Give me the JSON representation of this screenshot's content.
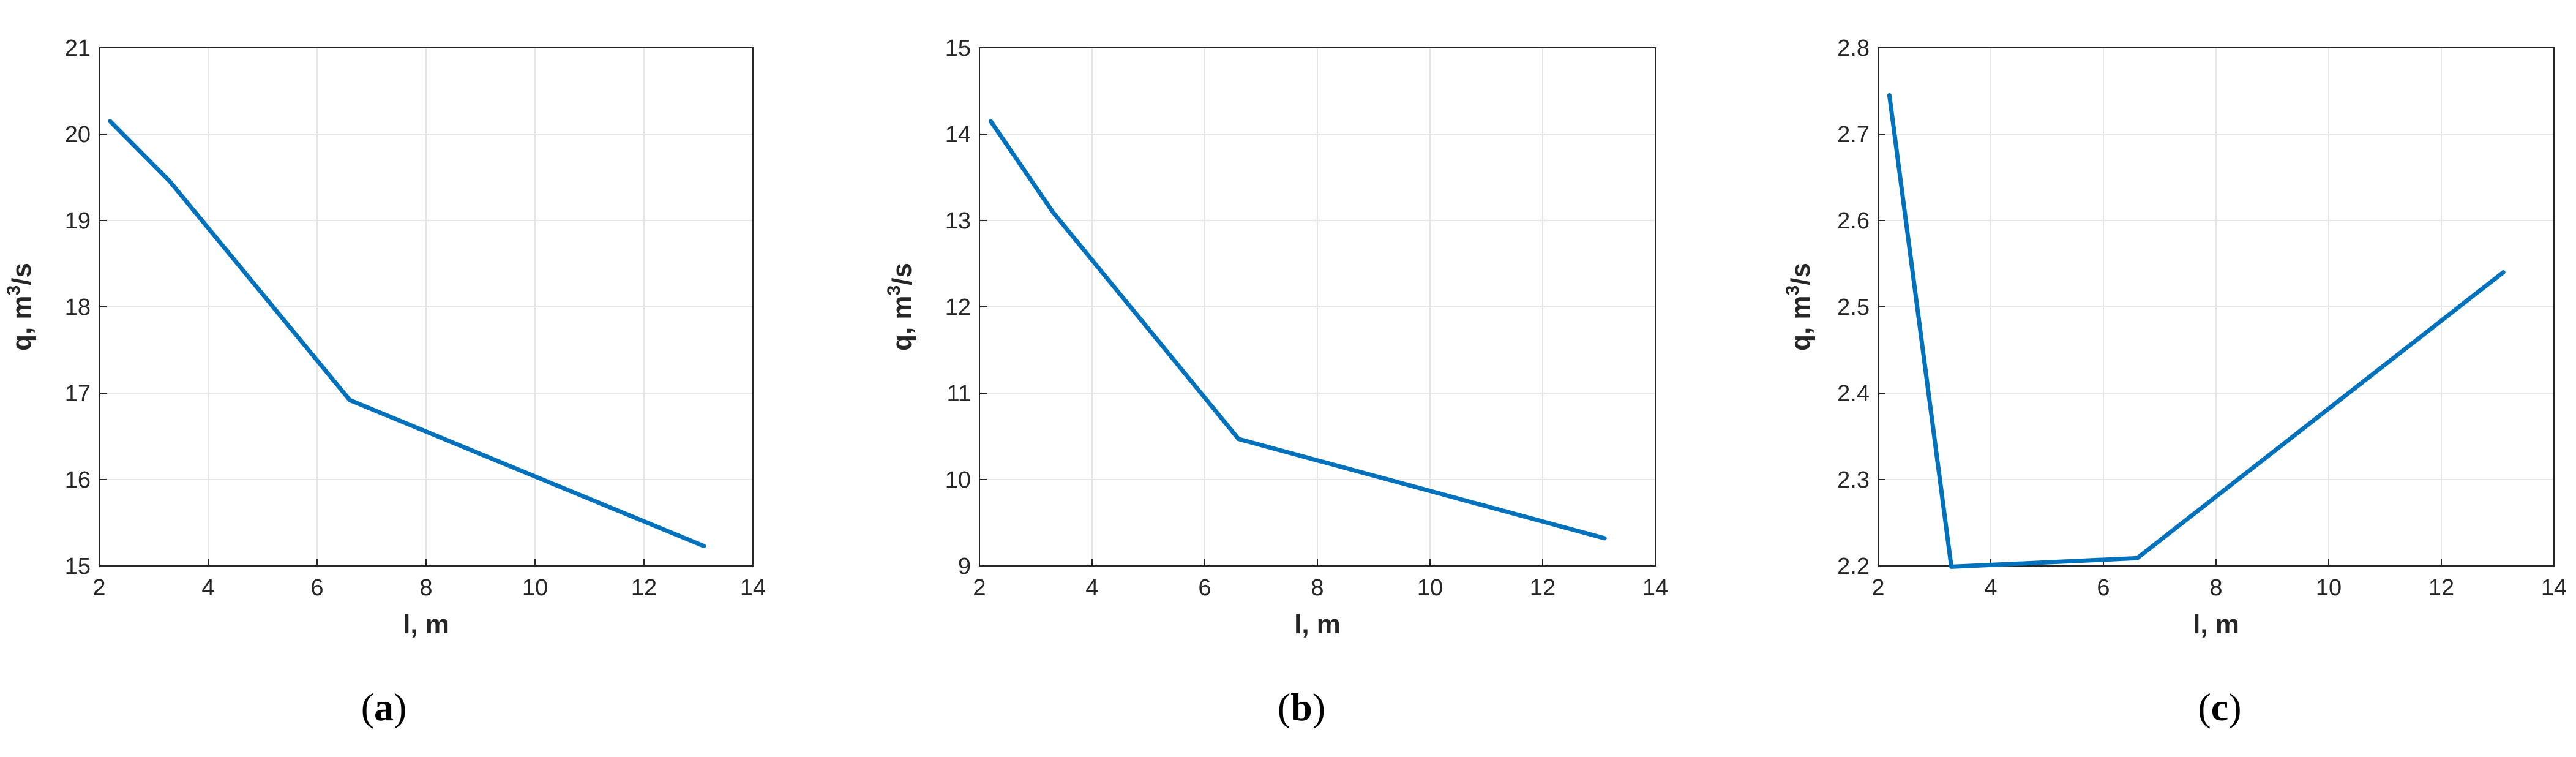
{
  "chart_data": [
    {
      "type": "line",
      "panel_label": "a",
      "xlabel": "l, m",
      "ylabel": "q, m",
      "ylabel_sup": "3",
      "ylabel_suffix": "/s",
      "xlim": [
        2,
        14
      ],
      "ylim": [
        15,
        21
      ],
      "xticks": [
        2,
        4,
        6,
        8,
        10,
        12,
        14
      ],
      "yticks": [
        15,
        16,
        17,
        18,
        19,
        20,
        21
      ],
      "grid": true,
      "series": [
        {
          "x": [
            2.2,
            3.3,
            6.6,
            13.1
          ],
          "y": [
            20.15,
            19.45,
            16.92,
            15.23
          ]
        }
      ]
    },
    {
      "type": "line",
      "panel_label": "b",
      "xlabel": "l, m",
      "ylabel": "q, m",
      "ylabel_sup": "3",
      "ylabel_suffix": "/s",
      "xlim": [
        2,
        14
      ],
      "ylim": [
        9,
        15
      ],
      "xticks": [
        2,
        4,
        6,
        8,
        10,
        12,
        14
      ],
      "yticks": [
        9,
        10,
        11,
        12,
        13,
        14,
        15
      ],
      "grid": true,
      "series": [
        {
          "x": [
            2.2,
            3.3,
            6.6,
            13.1
          ],
          "y": [
            14.15,
            13.1,
            10.47,
            9.32
          ]
        }
      ]
    },
    {
      "type": "line",
      "panel_label": "c",
      "xlabel": "l, m",
      "ylabel": "q, m",
      "ylabel_sup": "3",
      "ylabel_suffix": "/s",
      "xlim": [
        2,
        14
      ],
      "ylim": [
        2.2,
        2.8
      ],
      "xticks": [
        2,
        4,
        6,
        8,
        10,
        12,
        14
      ],
      "yticks": [
        2.2,
        2.3,
        2.4,
        2.5,
        2.6,
        2.7,
        2.8
      ],
      "ytick_decimals": 1,
      "grid": true,
      "series": [
        {
          "x": [
            2.2,
            3.3,
            6.6,
            13.1
          ],
          "y": [
            2.745,
            2.199,
            2.209,
            2.54
          ]
        }
      ]
    }
  ],
  "colors": {
    "series": "#0072BD",
    "grid": "#e6e6e6",
    "axis": "#262626"
  }
}
